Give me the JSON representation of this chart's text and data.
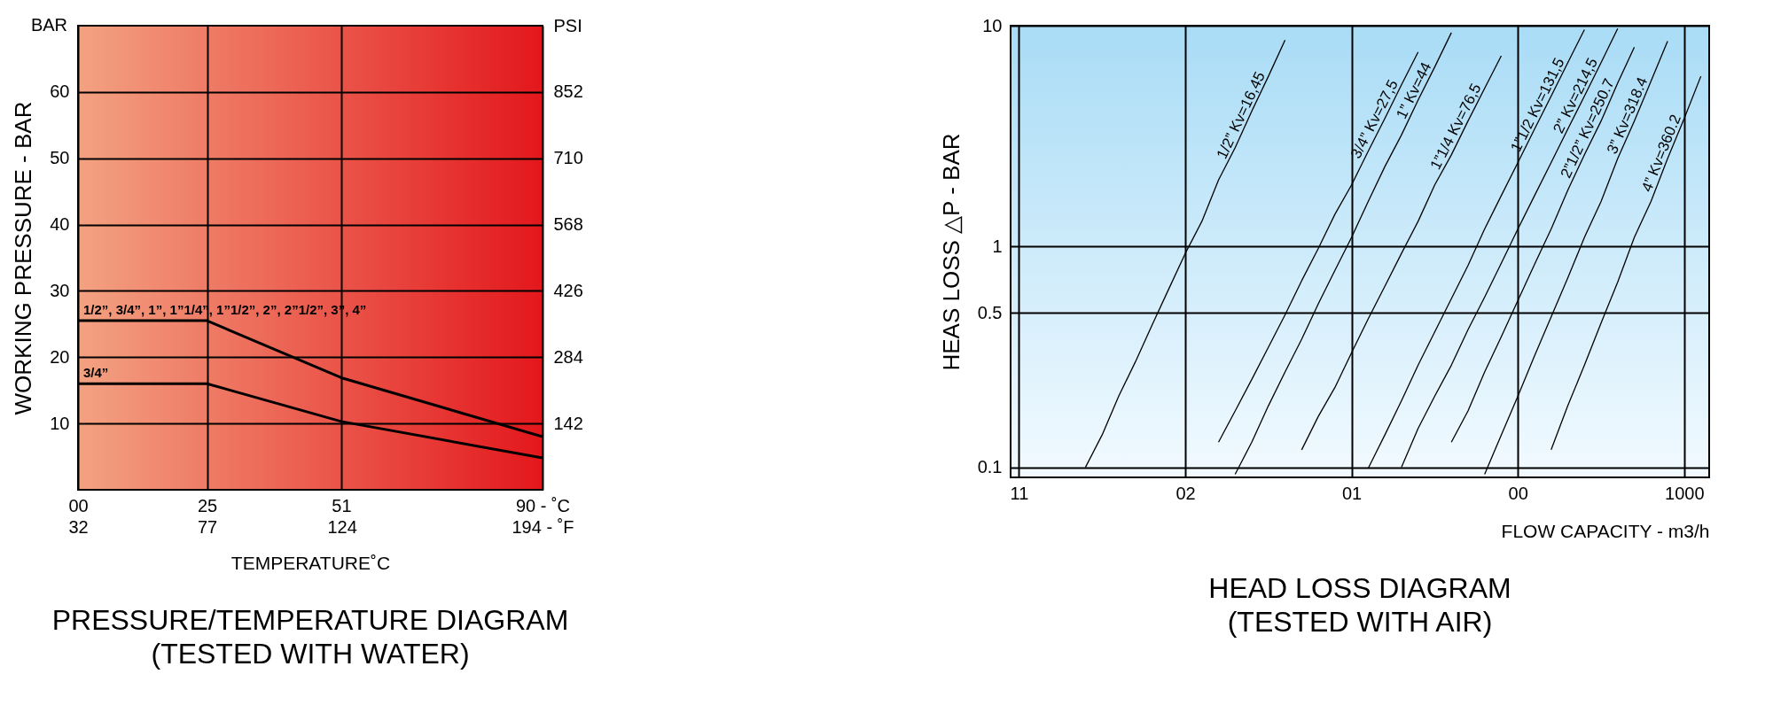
{
  "chart_data": [
    {
      "type": "line",
      "title": "PRESSURE/TEMPERATURE DIAGRAM",
      "subtitle": "(TESTED WITH WATER)",
      "xlabel": "TEMPERATURE˚C",
      "ylabel": "WORKING PRESSURE - BAR",
      "y2label": "PSI",
      "annotations": [
        "BAR"
      ],
      "x": [
        0,
        25,
        51,
        90
      ],
      "series": [
        {
          "name": "1/2”, 3/4”, 1”, 1”1/4”, 1”1/2”, 2”, 2”1/2”, 3”, 4”",
          "color": "#000000",
          "values": [
            25.5,
            25.5,
            16.9,
            8
          ]
        },
        {
          "name": "3/4”",
          "color": "#000000",
          "values": [
            16,
            16,
            10.3,
            4.8
          ]
        }
      ],
      "xlim": [
        0,
        90
      ],
      "xticks": [
        {
          "value": 0,
          "label": "00"
        },
        25,
        51,
        {
          "value": 90,
          "label": "90 - ˚C"
        }
      ],
      "x2lim": [
        32,
        194
      ],
      "x2ticks": [
        32,
        77,
        124,
        {
          "value": 194,
          "label": "194 - ˚F"
        }
      ],
      "ylim": [
        0,
        70
      ],
      "yticks": [
        10,
        20,
        30,
        40,
        50,
        60
      ],
      "y2lim": [
        0,
        994
      ],
      "y2ticks": [
        142,
        284,
        426,
        568,
        710,
        852
      ],
      "grid": true,
      "legend": false
    },
    {
      "type": "line",
      "title": "HEAD LOSS DIAGRAM",
      "subtitle": "(TESTED WITH AIR)",
      "xlabel": "FLOW CAPACITY - m3/h",
      "ylabel": "HEAS LOSS △P - BAR",
      "categories": [
        "11",
        null,
        null,
        null,
        null,
        null,
        null,
        null,
        null,
        null,
        "02",
        null,
        null,
        null,
        null,
        null,
        null,
        null,
        null,
        null,
        "01",
        null,
        null,
        null,
        null,
        null,
        null,
        null,
        null,
        null,
        "00",
        null,
        null,
        null,
        null,
        null,
        null,
        null,
        null,
        null,
        "1000",
        null
      ],
      "series": [
        {
          "name": "1/2” Kv=16,45",
          "color": "#000000",
          "values": [
            null,
            null,
            null,
            null,
            0.1,
            0.14,
            0.21,
            0.3,
            0.44,
            0.64,
            0.93,
            1.3,
            2,
            2.8,
            4.1,
            5.9,
            8.6,
            null,
            null,
            null,
            null,
            null,
            null,
            null,
            null,
            null,
            null,
            null,
            null,
            null,
            null,
            null,
            null,
            null,
            null,
            null,
            null,
            null,
            null,
            null,
            null,
            null
          ]
        },
        {
          "name": "3/4” Kv=27,5",
          "color": "#000000",
          "values": [
            null,
            null,
            null,
            null,
            null,
            null,
            null,
            null,
            null,
            null,
            null,
            null,
            0.13,
            0.18,
            0.25,
            0.35,
            0.49,
            0.7,
            0.98,
            1.4,
            1.9,
            2.7,
            3.8,
            5.4,
            7.6,
            null,
            null,
            null,
            null,
            null,
            null,
            null,
            null,
            null,
            null,
            null,
            null,
            null,
            null,
            null,
            null,
            null
          ]
        },
        {
          "name": "1” Kv=44",
          "color": "#000000",
          "values": [
            null,
            null,
            null,
            null,
            null,
            null,
            null,
            null,
            null,
            null,
            null,
            null,
            null,
            0.093,
            0.13,
            0.19,
            0.27,
            0.38,
            0.55,
            0.78,
            1.1,
            1.6,
            2.3,
            3.2,
            4.6,
            6.5,
            9.3,
            null,
            null,
            null,
            null,
            null,
            null,
            null,
            null,
            null,
            null,
            null,
            null,
            null,
            null,
            null
          ]
        },
        {
          "name": "1”1/4 Kv=76,5",
          "color": "#000000",
          "values": [
            null,
            null,
            null,
            null,
            null,
            null,
            null,
            null,
            null,
            null,
            null,
            null,
            null,
            null,
            null,
            null,
            null,
            0.12,
            0.17,
            0.23,
            0.33,
            0.47,
            0.66,
            0.93,
            1.3,
            1.9,
            2.6,
            3.7,
            5.2,
            7.3,
            null,
            null,
            null,
            null,
            null,
            null,
            null,
            null,
            null,
            null,
            null,
            null
          ]
        },
        {
          "name": "1”1/2 Kv=131,5",
          "color": "#000000",
          "values": [
            null,
            null,
            null,
            null,
            null,
            null,
            null,
            null,
            null,
            null,
            null,
            null,
            null,
            null,
            null,
            null,
            null,
            null,
            null,
            null,
            null,
            0.099,
            0.14,
            0.2,
            0.29,
            0.41,
            0.58,
            0.82,
            1.2,
            1.7,
            2.4,
            3.4,
            4.8,
            6.8,
            9.6,
            null,
            null,
            null,
            null,
            null,
            null,
            null
          ]
        },
        {
          "name": "2” Kv=214,5",
          "color": "#000000",
          "values": [
            null,
            null,
            null,
            null,
            null,
            null,
            null,
            null,
            null,
            null,
            null,
            null,
            null,
            null,
            null,
            null,
            null,
            null,
            null,
            null,
            null,
            null,
            null,
            0.1,
            0.15,
            0.21,
            0.29,
            0.42,
            0.59,
            0.84,
            1.2,
            1.7,
            2.4,
            3.4,
            4.8,
            6.8,
            9.7,
            null,
            null,
            null,
            null,
            null
          ]
        },
        {
          "name": "2”1/2” Kv=250.7",
          "color": "#000000",
          "values": [
            null,
            null,
            null,
            null,
            null,
            null,
            null,
            null,
            null,
            null,
            null,
            null,
            null,
            null,
            null,
            null,
            null,
            null,
            null,
            null,
            null,
            null,
            null,
            null,
            null,
            null,
            0.13,
            0.18,
            0.27,
            0.39,
            0.57,
            0.83,
            1.2,
            1.8,
            2.6,
            3.7,
            5.5,
            8,
            null,
            null,
            null,
            null
          ]
        },
        {
          "name": "3” Kv=318.4",
          "color": "#000000",
          "values": [
            null,
            null,
            null,
            null,
            null,
            null,
            null,
            null,
            null,
            null,
            null,
            null,
            null,
            null,
            null,
            null,
            null,
            null,
            null,
            null,
            null,
            null,
            null,
            null,
            null,
            null,
            null,
            null,
            0.093,
            0.14,
            0.21,
            0.32,
            0.48,
            0.72,
            1.1,
            1.6,
            2.5,
            3.7,
            5.6,
            8.5,
            null,
            null
          ]
        },
        {
          "name": "4” Kv=360.2",
          "color": "#000000",
          "values": [
            null,
            null,
            null,
            null,
            null,
            null,
            null,
            null,
            null,
            null,
            null,
            null,
            null,
            null,
            null,
            null,
            null,
            null,
            null,
            null,
            null,
            null,
            null,
            null,
            null,
            null,
            null,
            null,
            null,
            null,
            null,
            null,
            0.12,
            0.19,
            0.29,
            0.45,
            0.69,
            1.1,
            1.6,
            2.5,
            3.8,
            5.9
          ]
        }
      ],
      "ylim": [
        0.09,
        10
      ],
      "yticks": [
        0.1,
        0.5,
        1,
        10
      ],
      "log": "y",
      "grid": true,
      "legend": false
    }
  ]
}
